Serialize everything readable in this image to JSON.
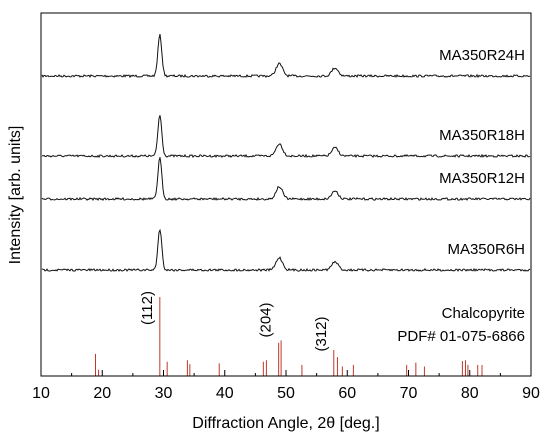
{
  "chart_data": {
    "type": "line",
    "xlabel": "Diffraction Angle, 2θ [deg.]",
    "ylabel": "Intensity [arb. units]",
    "xlim": [
      10,
      90
    ],
    "xticks": [
      "10",
      "20",
      "30",
      "40",
      "50",
      "60",
      "70",
      "80",
      "90"
    ],
    "y_ticks_shown": false,
    "grid": false,
    "series": [
      {
        "name": "MA350R24H",
        "peaks": [
          {
            "x": 29.4,
            "rel_height": 1.0
          },
          {
            "x": 48.9,
            "rel_height": 0.3
          },
          {
            "x": 58.0,
            "rel_height": 0.2
          }
        ]
      },
      {
        "name": "MA350R18H",
        "peaks": [
          {
            "x": 29.4,
            "rel_height": 1.0
          },
          {
            "x": 48.9,
            "rel_height": 0.3
          },
          {
            "x": 58.0,
            "rel_height": 0.2
          }
        ]
      },
      {
        "name": "MA350R12H",
        "peaks": [
          {
            "x": 29.4,
            "rel_height": 1.0
          },
          {
            "x": 48.9,
            "rel_height": 0.3
          },
          {
            "x": 58.0,
            "rel_height": 0.2
          }
        ]
      },
      {
        "name": "MA350R6H",
        "peaks": [
          {
            "x": 29.4,
            "rel_height": 1.0
          },
          {
            "x": 48.9,
            "rel_height": 0.3
          },
          {
            "x": 58.0,
            "rel_height": 0.2
          }
        ]
      }
    ],
    "reference": {
      "label_line1": "Chalcopyrite",
      "label_line2": "PDF# 01-075-6866",
      "color": "#c0392b",
      "sticks": [
        {
          "x": 18.9,
          "rel": 0.28
        },
        {
          "x": 19.4,
          "rel": 0.08
        },
        {
          "x": 29.4,
          "rel": 1.0
        },
        {
          "x": 30.6,
          "rel": 0.18
        },
        {
          "x": 33.9,
          "rel": 0.2
        },
        {
          "x": 34.3,
          "rel": 0.15
        },
        {
          "x": 39.1,
          "rel": 0.16
        },
        {
          "x": 46.3,
          "rel": 0.18
        },
        {
          "x": 46.8,
          "rel": 0.2
        },
        {
          "x": 48.8,
          "rel": 0.42
        },
        {
          "x": 49.2,
          "rel": 0.45
        },
        {
          "x": 52.6,
          "rel": 0.14
        },
        {
          "x": 57.8,
          "rel": 0.33
        },
        {
          "x": 58.4,
          "rel": 0.24
        },
        {
          "x": 59.2,
          "rel": 0.12
        },
        {
          "x": 61.0,
          "rel": 0.14
        },
        {
          "x": 69.7,
          "rel": 0.14
        },
        {
          "x": 71.2,
          "rel": 0.17
        },
        {
          "x": 72.6,
          "rel": 0.12
        },
        {
          "x": 78.8,
          "rel": 0.19
        },
        {
          "x": 79.3,
          "rel": 0.2
        },
        {
          "x": 79.7,
          "rel": 0.14
        },
        {
          "x": 81.3,
          "rel": 0.14
        },
        {
          "x": 82.0,
          "rel": 0.14
        }
      ],
      "annotations": [
        {
          "text": "(112)",
          "x": 29.4
        },
        {
          "text": "(204)",
          "x": 48.8
        },
        {
          "text": "(312)",
          "x": 57.8
        }
      ]
    }
  }
}
